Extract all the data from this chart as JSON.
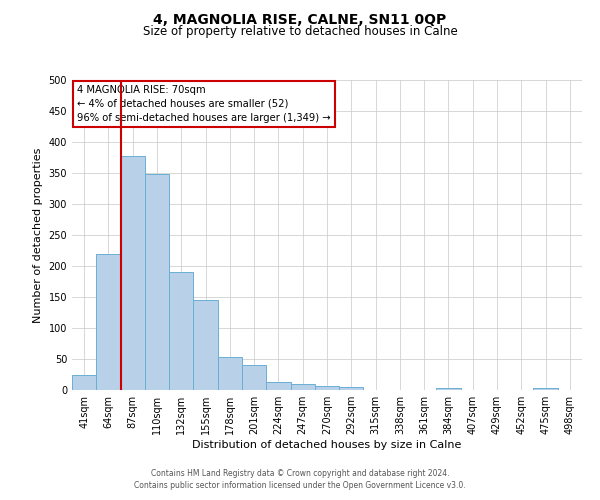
{
  "title": "4, MAGNOLIA RISE, CALNE, SN11 0QP",
  "subtitle": "Size of property relative to detached houses in Calne",
  "xlabel": "Distribution of detached houses by size in Calne",
  "ylabel": "Number of detached properties",
  "categories": [
    "41sqm",
    "64sqm",
    "87sqm",
    "110sqm",
    "132sqm",
    "155sqm",
    "178sqm",
    "201sqm",
    "224sqm",
    "247sqm",
    "270sqm",
    "292sqm",
    "315sqm",
    "338sqm",
    "361sqm",
    "384sqm",
    "407sqm",
    "429sqm",
    "452sqm",
    "475sqm",
    "498sqm"
  ],
  "values": [
    25,
    220,
    378,
    348,
    190,
    145,
    53,
    40,
    13,
    10,
    7,
    5,
    0,
    0,
    0,
    3,
    0,
    0,
    0,
    3,
    0
  ],
  "bar_color": "#b8d0e8",
  "bar_edge_color": "#6aafd6",
  "vline_color": "#cc0000",
  "ylim": [
    0,
    500
  ],
  "yticks": [
    0,
    50,
    100,
    150,
    200,
    250,
    300,
    350,
    400,
    450,
    500
  ],
  "annotation_text": "4 MAGNOLIA RISE: 70sqm\n← 4% of detached houses are smaller (52)\n96% of semi-detached houses are larger (1,349) →",
  "annotation_box_color": "#ffffff",
  "annotation_box_edge_color": "#cc0000",
  "footer_line1": "Contains HM Land Registry data © Crown copyright and database right 2024.",
  "footer_line2": "Contains public sector information licensed under the Open Government Licence v3.0.",
  "background_color": "#ffffff",
  "grid_color": "#c8c8c8",
  "title_fontsize": 10,
  "subtitle_fontsize": 8.5,
  "ylabel_fontsize": 8,
  "xlabel_fontsize": 8,
  "tick_fontsize": 7,
  "footer_fontsize": 5.5
}
